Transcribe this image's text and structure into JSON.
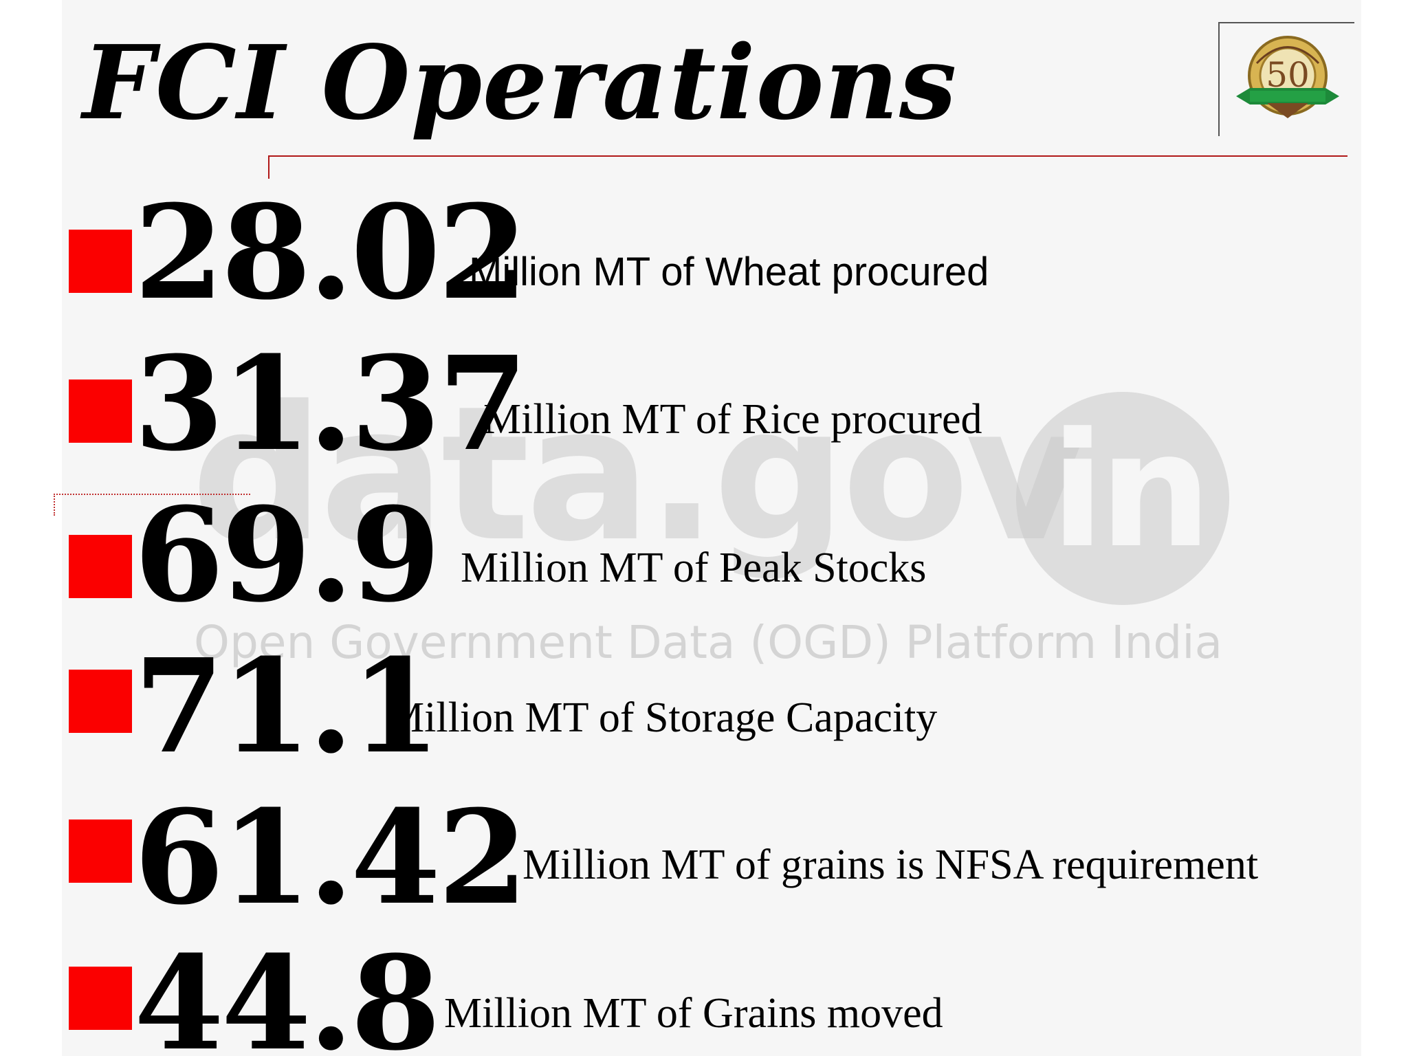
{
  "slide": {
    "title": "FCI Operations",
    "logo": {
      "icon": "fci-50-years-emblem",
      "number": "50"
    },
    "watermark": {
      "main": "data.gov",
      "badge": "in",
      "subtitle": "Open Government Data (OGD) Platform India"
    },
    "stats": [
      {
        "value": "28.02",
        "label": "Million MT of Wheat procured"
      },
      {
        "value": "31.37",
        "label": "Million MT of Rice procured"
      },
      {
        "value": "69.9",
        "label": "Million MT of Peak Stocks"
      },
      {
        "value": "71.1",
        "label": "Million MT of Storage Capacity"
      },
      {
        "value": "61.42",
        "label": "Million MT of grains is NFSA requirement"
      },
      {
        "value": "44.8",
        "label": "Million MT of Grains moved"
      }
    ],
    "colors": {
      "bullet": "#fb0000",
      "rule": "#b01818",
      "text": "#000000",
      "watermark": "#c9c9c9"
    }
  }
}
